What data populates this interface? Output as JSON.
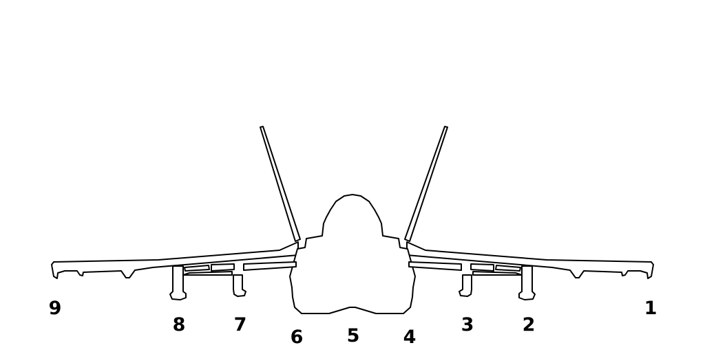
{
  "diagram": {
    "subject": "aircraft-front-view",
    "line_color": "#000000",
    "background": "#ffffff",
    "stations": [
      {
        "id": "1",
        "label": "1"
      },
      {
        "id": "2",
        "label": "2"
      },
      {
        "id": "3",
        "label": "3"
      },
      {
        "id": "4",
        "label": "4"
      },
      {
        "id": "5",
        "label": "5"
      },
      {
        "id": "6",
        "label": "6"
      },
      {
        "id": "7",
        "label": "7"
      },
      {
        "id": "8",
        "label": "8"
      },
      {
        "id": "9",
        "label": "9"
      }
    ]
  }
}
